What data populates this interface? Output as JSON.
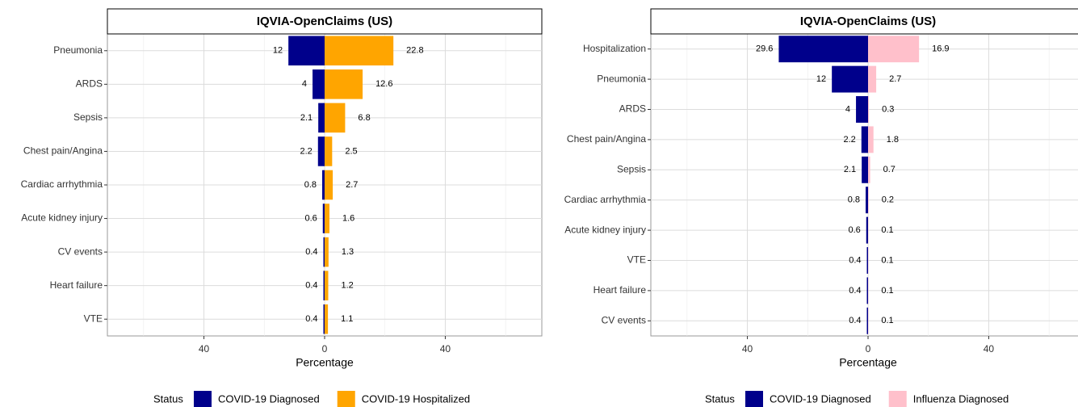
{
  "chart_data": [
    {
      "type": "diverging_bar",
      "title": "IQVIA-OpenClaims (US)",
      "x_label": "Percentage",
      "legend_title": "Status",
      "legend": "bottom",
      "grid": true,
      "categories": [
        "Pneumonia",
        "ARDS",
        "Sepsis",
        "Chest pain/Angina",
        "Cardiac arrhythmia",
        "Acute kidney injury",
        "CV events",
        "Heart failure",
        "VTE"
      ],
      "series": [
        {
          "name": "COVID-19 Diagnosed",
          "color": "#00008b",
          "values": [
            -12,
            -4,
            -2.1,
            -2.2,
            -0.8,
            -0.6,
            -0.4,
            -0.4,
            -0.4
          ],
          "value_labels": [
            "12",
            "4",
            "2.1",
            "2.2",
            "0.8",
            "0.6",
            "0.4",
            "0.4",
            "0.4"
          ]
        },
        {
          "name": "COVID-19 Hospitalized",
          "color": "#ffa500",
          "values": [
            22.8,
            12.6,
            6.8,
            2.5,
            2.7,
            1.6,
            1.3,
            1.2,
            1.1
          ]
        }
      ],
      "xlim": [
        -72,
        72
      ],
      "xticks": [
        {
          "value": -40,
          "label": "40"
        },
        0,
        40
      ]
    },
    {
      "type": "diverging_bar",
      "title": "IQVIA-OpenClaims (US)",
      "x_label": "Percentage",
      "legend_title": "Status",
      "legend": "bottom",
      "grid": true,
      "categories": [
        "Hospitalization",
        "Pneumonia",
        "ARDS",
        "Chest pain/Angina",
        "Sepsis",
        "Cardiac arrhythmia",
        "Acute kidney injury",
        "VTE",
        "Heart failure",
        "CV events"
      ],
      "series": [
        {
          "name": "COVID-19 Diagnosed",
          "color": "#00008b",
          "values": [
            -29.6,
            -12,
            -4,
            -2.2,
            -2.1,
            -0.8,
            -0.6,
            -0.4,
            -0.4,
            -0.4
          ],
          "value_labels": [
            "29.6",
            "12",
            "4",
            "2.2",
            "2.1",
            "0.8",
            "0.6",
            "0.4",
            "0.4",
            "0.4"
          ]
        },
        {
          "name": "Influenza Diagnosed",
          "color": "#ffc0cb",
          "values": [
            16.9,
            2.7,
            0.3,
            1.8,
            0.7,
            0.2,
            0.1,
            0.1,
            0.1,
            0.1
          ]
        }
      ],
      "xlim": [
        -72,
        72
      ],
      "xticks": [
        {
          "value": -40,
          "label": "40"
        },
        0,
        40
      ]
    }
  ]
}
